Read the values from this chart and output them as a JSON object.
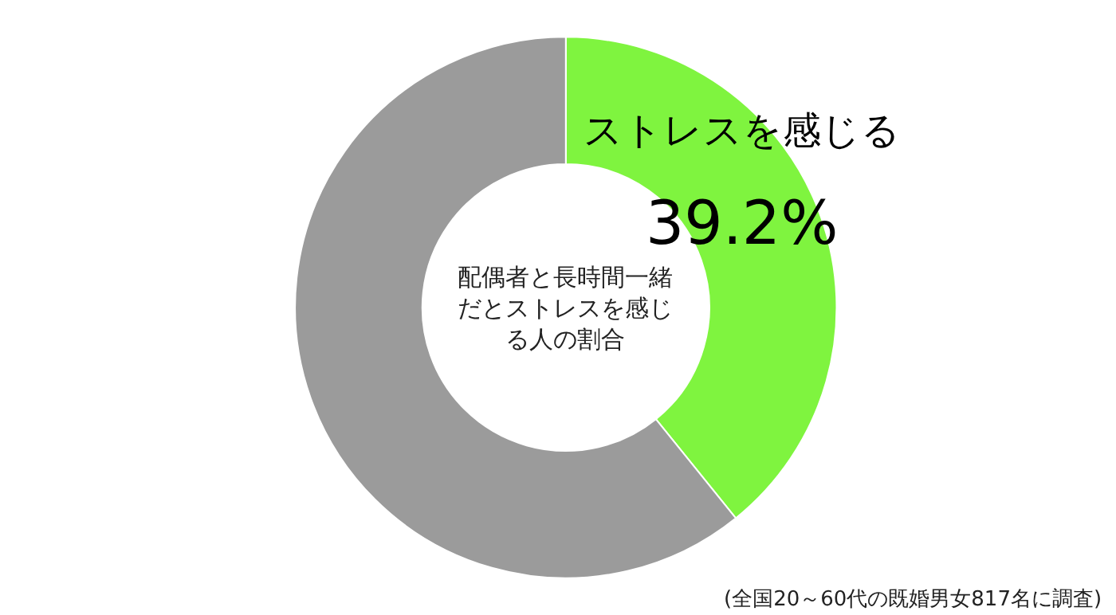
{
  "chart_data": {
    "type": "donut",
    "title": "配偶者と長時間一緒だとストレスを感じる人の割合",
    "categories": [
      "ストレスを感じる",
      null
    ],
    "values": [
      39.2,
      60.8
    ],
    "value_labels": [
      "39.2%",
      null
    ],
    "colors": [
      "#7ff43f",
      "#9b9b9b"
    ],
    "annotations": [
      "(全国20～60代の既婚男女817名に調査)"
    ],
    "legend": false
  }
}
